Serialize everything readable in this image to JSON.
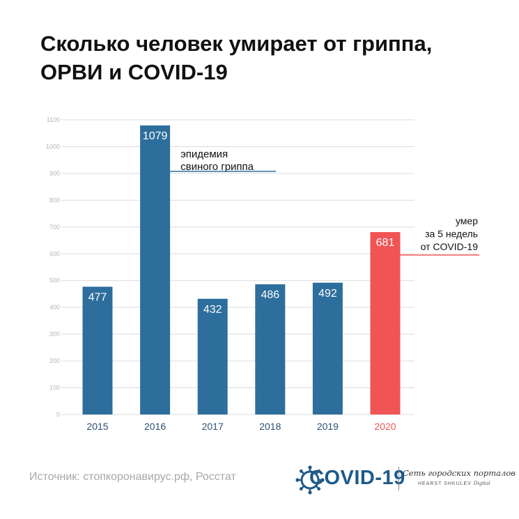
{
  "title_lines": [
    "Сколько человек умирает от гриппа,",
    "ОРВИ и COVID-19"
  ],
  "source": "Источник: стопкоронавирус.рф, Росстат",
  "logo": {
    "main": "COVID-19",
    "sub1": "Сеть городских порталов",
    "sub2_brand": "HEARST SHKULEV",
    "sub2_suffix": "Digital"
  },
  "colors": {
    "bar": "#2d6e9c",
    "highlight": "#f05454",
    "grid": "#dcdcdc",
    "axis_text": "#b5b5b5",
    "category_text": "#2a4f73",
    "callout_line_2016": "#2d6e9c",
    "callout_line_2020": "#f05454"
  },
  "chart_data": {
    "type": "bar",
    "title": "Сколько человек умирает от гриппа, ОРВИ и COVID-19",
    "categories": [
      "2015",
      "2016",
      "2017",
      "2018",
      "2019",
      "2020"
    ],
    "values": [
      477,
      1079,
      432,
      486,
      492,
      681
    ],
    "data_labels": [
      "477",
      "1079",
      "432",
      "486",
      "492",
      "681"
    ],
    "highlight_index": 5,
    "y_ticks": [
      0,
      100,
      200,
      300,
      400,
      500,
      600,
      700,
      800,
      900,
      1000,
      1100
    ],
    "ylim": [
      0,
      1100
    ],
    "grid": true,
    "annotations": [
      {
        "category": "2016",
        "lines": [
          "эпидемия",
          "свиного гриппа"
        ]
      },
      {
        "category": "2020",
        "lines": [
          "умер",
          "за 5 недель",
          "от COVID-19"
        ]
      }
    ]
  }
}
